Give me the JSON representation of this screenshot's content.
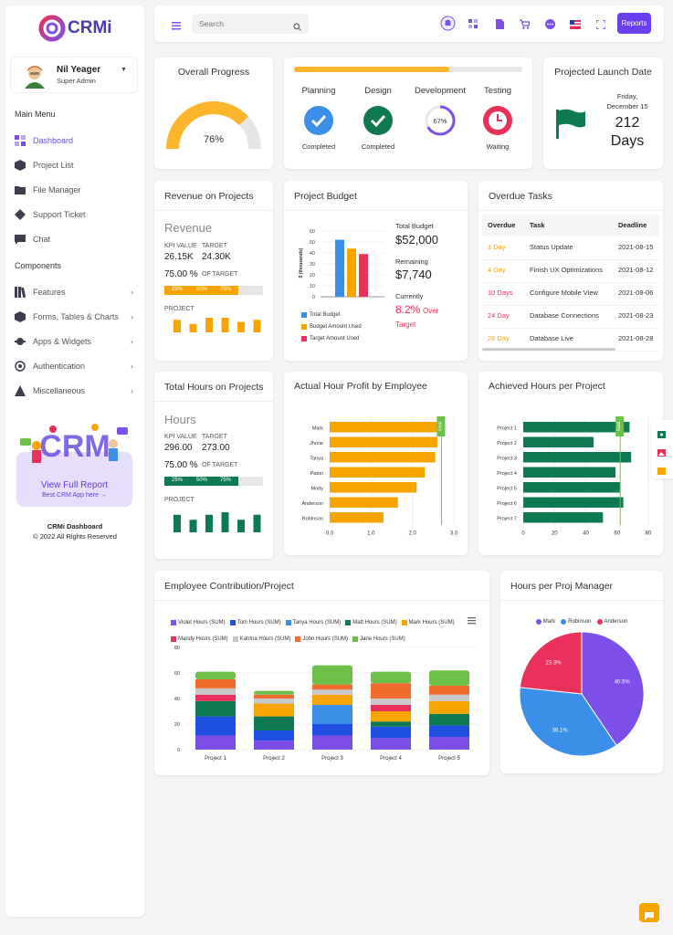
{
  "brand": {
    "name": "CRMi"
  },
  "user": {
    "name": "Nil Yeager",
    "role": "Super Admin"
  },
  "menu": {
    "main_title": "Main Menu",
    "components_title": "Components",
    "dashboard": "Dashboard",
    "project_list": "Project List",
    "file_manager": "File Manager",
    "support_ticket": "Support Ticket",
    "chat": "Chat",
    "features": "Features",
    "forms": "Forms, Tables & Charts",
    "apps": "Apps & Widgets",
    "auth": "Authentication",
    "misc": "Miscellaneous"
  },
  "promo": {
    "cta": "View Full Report",
    "sub": "Best CRM App here →",
    "art_text": "CRM"
  },
  "footer": {
    "title": "CRMi Dashboard",
    "copy": "© 2022 All Rights Reserved"
  },
  "topbar": {
    "search_placeholder": "Search",
    "reports_label": "Reports"
  },
  "overall": {
    "title": "Overall Progress",
    "value": "76%",
    "fraction": 0.76
  },
  "phases": {
    "bar_fraction": 0.68,
    "items": [
      {
        "name": "Planning",
        "status": "Completed",
        "color": "#3b8fe8"
      },
      {
        "name": "Design",
        "status": "Completed",
        "color": "#0f7a52"
      },
      {
        "name": "Development",
        "status": "",
        "pct": "67%",
        "color": "#7b4fe8"
      },
      {
        "name": "Testing",
        "status": "Waiting",
        "color": "#e8305a"
      }
    ]
  },
  "launch": {
    "title": "Projected Launch Date",
    "day": "Friday,",
    "date": "December 15",
    "days": "212",
    "unit": "Days"
  },
  "revenue": {
    "title": "Revenue on Projects",
    "heading": "Revenue",
    "kpi_label": "KPI VALUE",
    "kpi": "26.15K",
    "target_label": "TARGET",
    "target": "24.30K",
    "pct": "75.00 %",
    "of_target": "OF TARGET",
    "ticks": [
      "25%",
      "50%",
      "75%"
    ],
    "fill": 0.75,
    "project_label": "PROJECT",
    "bars": [
      6,
      4,
      7,
      7,
      5,
      6
    ]
  },
  "budget": {
    "title": "Project Budget",
    "ylabel": "$ (thousands)",
    "total_label": "Total Budget",
    "total": "$52,000",
    "remaining_label": "Remaining",
    "remaining": "$7,740",
    "currently_label": "Currently",
    "currently_pct": "8.2%",
    "over_label": "Over",
    "target_label": "Target",
    "legend": [
      "Total Budget",
      "Budget Amount Used",
      "Target Amount Used"
    ]
  },
  "overdue": {
    "title": "Overdue Tasks",
    "headers": [
      "Overdue",
      "Task",
      "Deadline"
    ],
    "rows": [
      {
        "overdue": "1 Day",
        "task": "Status Update",
        "deadline": "2021-08-15",
        "color": "#f7a400"
      },
      {
        "overdue": "4 Day",
        "task": "Finish UX Optimizations",
        "deadline": "2021-08-12",
        "color": "#f7a400"
      },
      {
        "overdue": "10 Days",
        "task": "Configure Mobile View",
        "deadline": "2021-08-06",
        "color": "#e8305a"
      },
      {
        "overdue": "24 Day",
        "task": "Database Connections",
        "deadline": "2021-08-23",
        "color": "#e8305a"
      },
      {
        "overdue": "26 Day",
        "task": "Database Live",
        "deadline": "2021-08-28",
        "color": "#f7a400"
      }
    ]
  },
  "hours": {
    "title": "Total Hours on Projects",
    "heading": "Hours",
    "kpi_label": "KPI VALUE",
    "kpi": "296.00",
    "target_label": "TARGET",
    "target": "273.00",
    "pct": "75.00 %",
    "of_target": "OF TARGET",
    "ticks": [
      "25%",
      "50%",
      "75%"
    ],
    "fill": 0.75,
    "project_label": "PROJECT",
    "bars": [
      7,
      5,
      7,
      8,
      5,
      7
    ]
  },
  "profit": {
    "title": "Actual Hour Profit by Employee",
    "badge": "Goal"
  },
  "achieved": {
    "title": "Achieved Hours per Project",
    "badge": "Goal"
  },
  "contrib": {
    "title": "Employee Contribution/Project"
  },
  "pie_card": {
    "title": "Hours per Proj Manager"
  },
  "chart_data": [
    {
      "type": "bar",
      "id": "budget",
      "ylabel": "$ (thousands)",
      "ylim": [
        0,
        60
      ],
      "yticks": [
        0,
        10,
        20,
        30,
        40,
        50,
        60
      ],
      "series": [
        {
          "name": "Total Budget",
          "values": [
            52
          ],
          "color": "#3b8fe8"
        },
        {
          "name": "Budget Amount Used",
          "values": [
            44
          ],
          "color": "#f7a400"
        },
        {
          "name": "Target Amount Used",
          "values": [
            39
          ],
          "color": "#e8305a"
        }
      ]
    },
    {
      "type": "bar",
      "id": "profit",
      "orientation": "horizontal",
      "categories": [
        "Mark",
        "Jhone",
        "Tanya",
        "Paton",
        "Mody",
        "Anderson",
        "Robinson"
      ],
      "values": [
        2.65,
        2.6,
        2.55,
        2.3,
        2.1,
        1.65,
        1.3
      ],
      "xlim": [
        0,
        3.0
      ],
      "xticks": [
        "0.0",
        "1.0",
        "2.0",
        "3.0"
      ],
      "goal": 2.7,
      "color": "#f7a400"
    },
    {
      "type": "bar",
      "id": "achieved",
      "orientation": "horizontal",
      "categories": [
        "Project 1",
        "Project 2",
        "Project 3",
        "Project 4",
        "Project 5",
        "Project 6",
        "Project 7"
      ],
      "values": [
        68,
        45,
        69,
        59,
        62,
        64,
        51
      ],
      "xlim": [
        0,
        80
      ],
      "xticks": [
        "0",
        "20",
        "40",
        "60",
        "80"
      ],
      "goal": 62,
      "color": "#0f7a52"
    },
    {
      "type": "bar",
      "id": "contribution",
      "stacked": true,
      "categories": [
        "Project 1",
        "Project 2",
        "Project 3",
        "Project 4",
        "Project 5"
      ],
      "ylim": [
        0,
        80
      ],
      "yticks": [
        0,
        20,
        40,
        60,
        80
      ],
      "series": [
        {
          "name": "Violet Hours (SUM)",
          "values": [
            11,
            7,
            11,
            9,
            10
          ],
          "color": "#7b4fe8"
        },
        {
          "name": "Tom Hours (SUM)",
          "values": [
            15,
            8,
            9,
            9,
            9
          ],
          "color": "#1f4fe0"
        },
        {
          "name": "Tanya Hours (SUM)",
          "values": [
            0,
            0,
            15,
            0,
            0
          ],
          "color": "#3b8fe8"
        },
        {
          "name": "Matt Hours (SUM)",
          "values": [
            12,
            11,
            0,
            4,
            9
          ],
          "color": "#0f7a52"
        },
        {
          "name": "Mark Hours (SUM)",
          "values": [
            0,
            10,
            8,
            8,
            10
          ],
          "color": "#f7a400"
        },
        {
          "name": "Mandy Hours (SUM)",
          "values": [
            5,
            0,
            0,
            5,
            0
          ],
          "color": "#e8305a"
        },
        {
          "name": "Katrina Hours (SUM)",
          "values": [
            5,
            4,
            4,
            5,
            5
          ],
          "color": "#c8c8c8"
        },
        {
          "name": "John Hours (SUM)",
          "values": [
            7,
            3,
            4,
            12,
            7
          ],
          "color": "#f16b2c"
        },
        {
          "name": "Jane Hours (SUM)",
          "values": [
            6,
            3,
            15,
            9,
            12
          ],
          "color": "#6cc04a"
        }
      ]
    },
    {
      "type": "pie",
      "id": "managers",
      "labels": [
        "Mark",
        "Robinson",
        "Anderson"
      ],
      "values": [
        40.5,
        36.1,
        23.3
      ],
      "colors": [
        "#7b4fe8",
        "#3b8fe8",
        "#e8305a"
      ],
      "legend": "top"
    }
  ]
}
